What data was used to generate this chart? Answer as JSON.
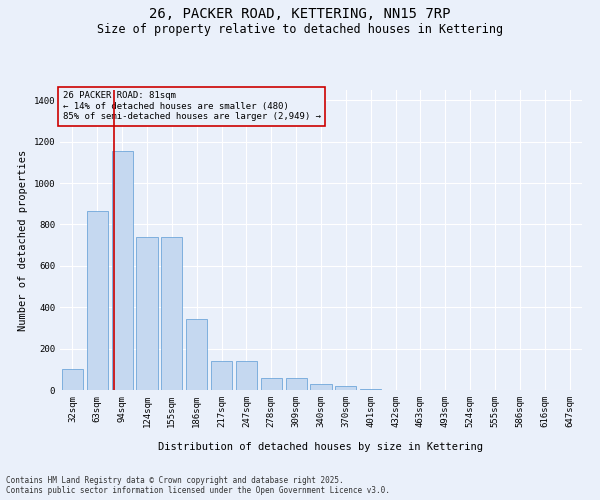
{
  "title": "26, PACKER ROAD, KETTERING, NN15 7RP",
  "subtitle": "Size of property relative to detached houses in Kettering",
  "xlabel": "Distribution of detached houses by size in Kettering",
  "ylabel": "Number of detached properties",
  "footer_line1": "Contains HM Land Registry data © Crown copyright and database right 2025.",
  "footer_line2": "Contains public sector information licensed under the Open Government Licence v3.0.",
  "annotation_line1": "26 PACKER ROAD: 81sqm",
  "annotation_line2": "← 14% of detached houses are smaller (480)",
  "annotation_line3": "85% of semi-detached houses are larger (2,949) →",
  "bar_color": "#c5d8f0",
  "bar_edge_color": "#5b9bd5",
  "vline_color": "#cc0000",
  "vline_x_index": 2,
  "bins": [
    "32sqm",
    "63sqm",
    "94sqm",
    "124sqm",
    "155sqm",
    "186sqm",
    "217sqm",
    "247sqm",
    "278sqm",
    "309sqm",
    "340sqm",
    "370sqm",
    "401sqm",
    "432sqm",
    "463sqm",
    "493sqm",
    "524sqm",
    "555sqm",
    "586sqm",
    "616sqm",
    "647sqm"
  ],
  "values": [
    100,
    865,
    1155,
    740,
    740,
    345,
    140,
    140,
    60,
    60,
    27,
    20,
    7,
    0,
    0,
    0,
    0,
    0,
    0,
    0,
    0
  ],
  "ylim": [
    0,
    1450
  ],
  "yticks": [
    0,
    200,
    400,
    600,
    800,
    1000,
    1200,
    1400
  ],
  "background_color": "#eaf0fa",
  "grid_color": "#ffffff",
  "title_fontsize": 10,
  "subtitle_fontsize": 8.5,
  "axis_label_fontsize": 7.5,
  "tick_fontsize": 6.5,
  "annotation_fontsize": 6.5,
  "footer_fontsize": 5.5
}
